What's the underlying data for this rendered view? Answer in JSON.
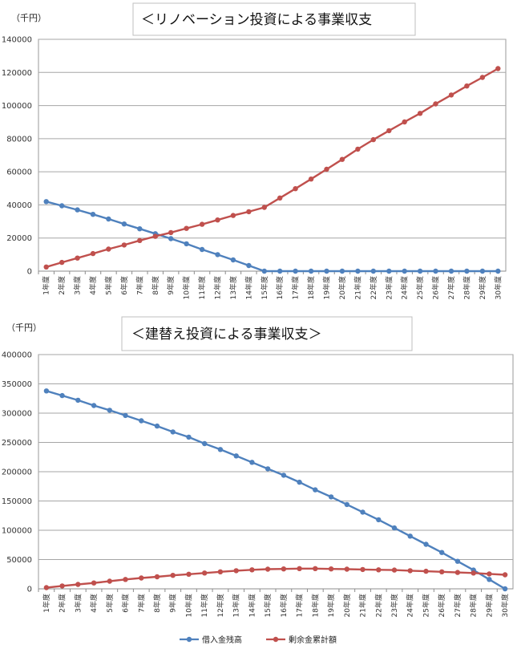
{
  "chart_data": [
    {
      "type": "line",
      "title": "＜リノベーション投資による事業収支",
      "unit_label": "（千円）",
      "ylim": [
        0,
        140000
      ],
      "yticks": [
        0,
        20000,
        40000,
        60000,
        80000,
        100000,
        120000,
        140000
      ],
      "grid": true,
      "categories": [
        "1年度",
        "2年度",
        "3年度",
        "4年度",
        "5年度",
        "6年度",
        "7年度",
        "8年度",
        "9年度",
        "10年度",
        "11年度",
        "12年度",
        "13年度",
        "14年度",
        "15年度",
        "16年度",
        "17年度",
        "18年度",
        "19年度",
        "20年度",
        "21年度",
        "22年度",
        "23年度",
        "24年度",
        "25年度",
        "26年度",
        "27年度",
        "28年度",
        "29年度",
        "30年度"
      ],
      "series": [
        {
          "name": "借入金残高",
          "color": "#4f81bd",
          "values": [
            42000,
            39500,
            37000,
            34300,
            31500,
            28500,
            25600,
            22600,
            19600,
            16500,
            13100,
            10000,
            6800,
            3400,
            0,
            0,
            0,
            0,
            0,
            0,
            0,
            0,
            0,
            0,
            0,
            0,
            0,
            0,
            0,
            0
          ]
        },
        {
          "name": "剰余金累計額",
          "color": "#c0504d",
          "values": [
            2500,
            5300,
            7900,
            10600,
            13300,
            15800,
            18500,
            21000,
            23300,
            25800,
            28300,
            30900,
            33600,
            35900,
            38500,
            44200,
            49800,
            55600,
            61500,
            67500,
            73700,
            79400,
            84800,
            90100,
            95300,
            101000,
            106400,
            111800,
            117000,
            122300
          ]
        }
      ]
    },
    {
      "type": "line",
      "title": "＜建替え投資による事業収支＞",
      "unit_label": "（千円）",
      "ylim": [
        0,
        400000
      ],
      "yticks": [
        0,
        50000,
        100000,
        150000,
        200000,
        250000,
        300000,
        350000,
        400000
      ],
      "grid": true,
      "legend_position": "bottom",
      "categories": [
        "1年度",
        "2年度",
        "3年度",
        "4年度",
        "5年度",
        "6年度",
        "7年度",
        "8年度",
        "9年度",
        "10年度",
        "11年度",
        "12年度",
        "13年度",
        "14年度",
        "15年度",
        "16年度",
        "17年度",
        "18年度",
        "19年度",
        "20年度",
        "21年度",
        "22年度",
        "23年度",
        "24年度",
        "25年度",
        "26年度",
        "27年度",
        "28年度",
        "29年度",
        "30年度"
      ],
      "series": [
        {
          "name": "借入金残高",
          "color": "#4f81bd",
          "values": [
            338000,
            330000,
            322000,
            313000,
            305000,
            296000,
            287000,
            278000,
            268000,
            259000,
            248000,
            238000,
            227000,
            216000,
            205000,
            194000,
            182000,
            169000,
            157000,
            144000,
            131000,
            118000,
            104000,
            90000,
            76000,
            62000,
            47000,
            32000,
            16000,
            0
          ]
        },
        {
          "name": "剰余金累計額",
          "color": "#c0504d",
          "values": [
            2000,
            5000,
            7500,
            10000,
            13000,
            16000,
            18500,
            20500,
            23000,
            25000,
            27000,
            29000,
            31000,
            32500,
            33500,
            34000,
            34500,
            34500,
            34000,
            33500,
            33000,
            32500,
            32000,
            31000,
            30000,
            29000,
            28000,
            27000,
            25500,
            24000
          ]
        }
      ]
    }
  ]
}
